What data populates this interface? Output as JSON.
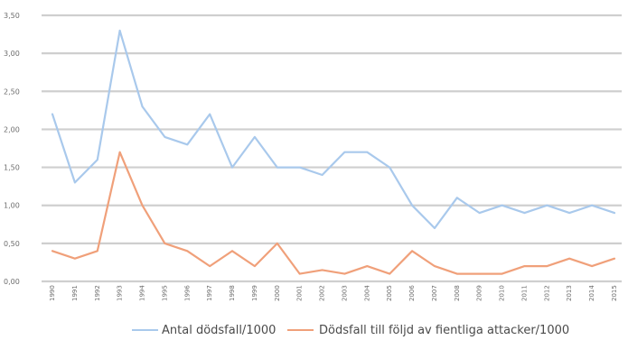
{
  "chart_data": {
    "type": "line",
    "title": "",
    "xlabel": "",
    "ylabel": "",
    "ylim": [
      0,
      3.5
    ],
    "yticks": [
      0,
      0.5,
      1,
      1.5,
      2,
      2.5,
      3,
      3.5
    ],
    "ytick_labels": [
      "0,00",
      "0,50",
      "1,00",
      "1,50",
      "2,00",
      "2,50",
      "3,00",
      "3,50"
    ],
    "grid": true,
    "legend_position": "bottom",
    "categories": [
      "1990",
      "1991",
      "1992",
      "1993",
      "1994",
      "1995",
      "1996",
      "1997",
      "1998",
      "1999",
      "2000",
      "2001",
      "2002",
      "2003",
      "2004",
      "2005",
      "2006",
      "2007",
      "2008",
      "2009",
      "2010",
      "2011",
      "2012",
      "2013",
      "2014",
      "2015"
    ],
    "series": [
      {
        "name": "Antal dödsfall/1000",
        "color": "#a9c9ec",
        "values": [
          2.2,
          1.3,
          1.6,
          3.3,
          2.3,
          1.9,
          1.8,
          2.2,
          1.5,
          1.9,
          1.5,
          1.5,
          1.4,
          1.7,
          1.7,
          1.5,
          1.0,
          0.7,
          1.1,
          0.9,
          1.0,
          0.9,
          1.0,
          0.9,
          1.0,
          0.9
        ]
      },
      {
        "name": "Dödsfall till följd av fientliga attacker/1000",
        "color": "#f0a07a",
        "values": [
          0.4,
          0.3,
          0.4,
          1.7,
          1.0,
          0.5,
          0.4,
          0.2,
          0.4,
          0.2,
          0.5,
          0.1,
          0.15,
          0.1,
          0.2,
          0.1,
          0.4,
          0.2,
          0.1,
          0.1,
          0.1,
          0.2,
          0.2,
          0.3,
          0.2,
          0.3
        ]
      }
    ]
  }
}
